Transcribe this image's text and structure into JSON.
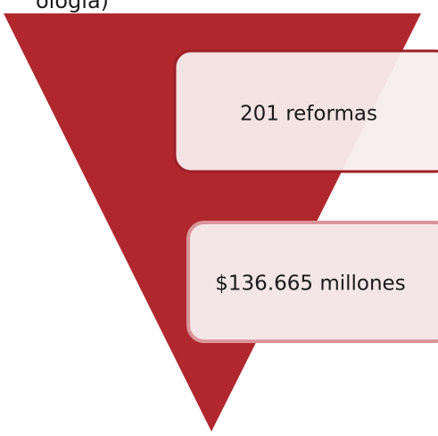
{
  "header": {
    "title": "ología)"
  },
  "boxes": [
    {
      "label": "201 reformas"
    },
    {
      "label": "$136.665 millones"
    }
  ]
}
